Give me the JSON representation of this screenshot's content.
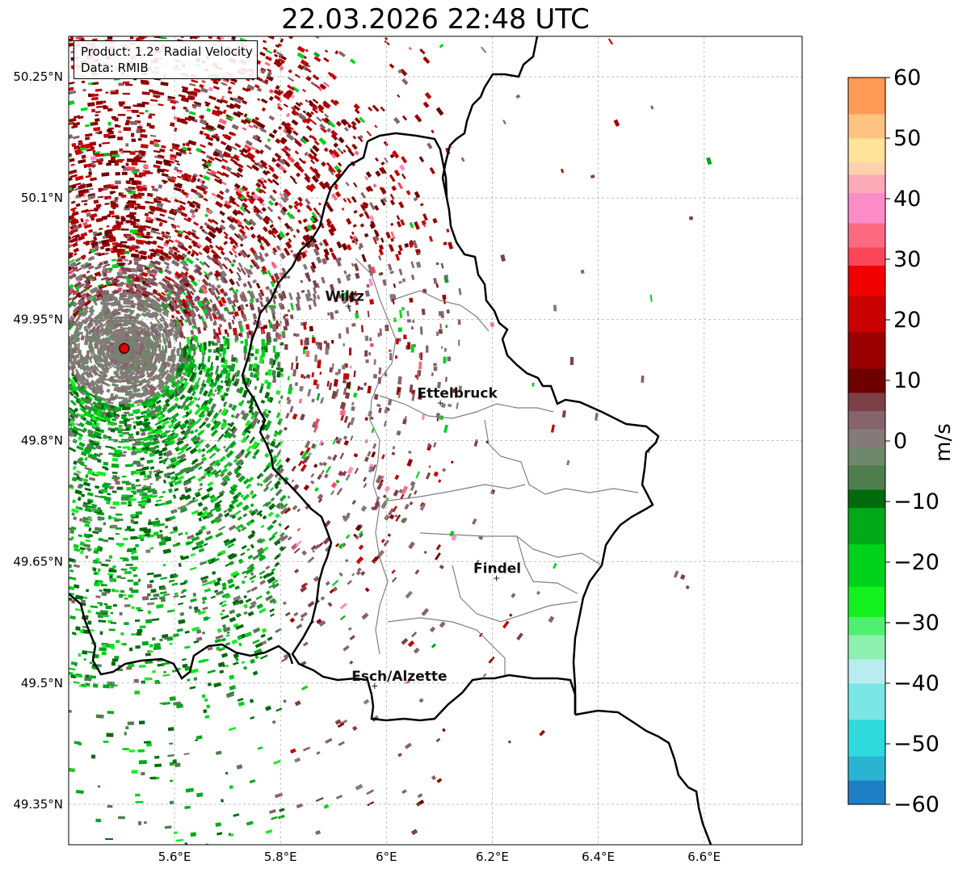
{
  "title": "22.03.2026 22:48 UTC",
  "info": {
    "product": "Product: 1.2° Radial Velocity",
    "data_source": "Data: RMIB"
  },
  "map": {
    "lon_range": [
      5.4,
      6.785
    ],
    "lat_range": [
      49.3,
      50.3
    ],
    "lon_ticks": [
      {
        "value": 5.6,
        "label": "5.6°E"
      },
      {
        "value": 5.8,
        "label": "5.8°E"
      },
      {
        "value": 6.0,
        "label": "6°E"
      },
      {
        "value": 6.2,
        "label": "6.2°E"
      },
      {
        "value": 6.4,
        "label": "6.4°E"
      },
      {
        "value": 6.6,
        "label": "6.6°E"
      }
    ],
    "lat_ticks": [
      {
        "value": 50.25,
        "label": "50.25°N"
      },
      {
        "value": 50.1,
        "label": "50.1°N"
      },
      {
        "value": 49.95,
        "label": "49.95°N"
      },
      {
        "value": 49.8,
        "label": "49.8°N"
      },
      {
        "value": 49.65,
        "label": "49.65°N"
      },
      {
        "value": 49.5,
        "label": "49.5°N"
      },
      {
        "value": 49.35,
        "label": "49.35°N"
      }
    ],
    "cities": [
      {
        "name": "Wiltz",
        "lon": 5.93,
        "lat": 49.967
      },
      {
        "name": "Ettelbruck",
        "lon": 6.104,
        "lat": 49.847
      },
      {
        "name": "Findel",
        "lon": 6.21,
        "lat": 49.63
      },
      {
        "name": "Esch/Alzette",
        "lon": 5.98,
        "lat": 49.497
      }
    ],
    "radar_site": {
      "lon": 5.505,
      "lat": 49.914
    }
  },
  "colorbar": {
    "label": "m/s",
    "min": -60,
    "max": 60,
    "ticks": [
      {
        "value": 60,
        "label": "60"
      },
      {
        "value": 50,
        "label": "50"
      },
      {
        "value": 40,
        "label": "40"
      },
      {
        "value": 30,
        "label": "30"
      },
      {
        "value": 20,
        "label": "20"
      },
      {
        "value": 10,
        "label": "10"
      },
      {
        "value": 0,
        "label": "0"
      },
      {
        "value": -10,
        "label": "−10"
      },
      {
        "value": -20,
        "label": "−20"
      },
      {
        "value": -30,
        "label": "−30"
      },
      {
        "value": -40,
        "label": "−40"
      },
      {
        "value": -50,
        "label": "−50"
      },
      {
        "value": -60,
        "label": "−60"
      }
    ],
    "bands": [
      {
        "from": -60,
        "to": -56,
        "color": "#1f7fc4"
      },
      {
        "from": -56,
        "to": -52,
        "color": "#2ab4d2"
      },
      {
        "from": -52,
        "to": -46,
        "color": "#2edadc"
      },
      {
        "from": -46,
        "to": -40,
        "color": "#7ae6e6"
      },
      {
        "from": -40,
        "to": -36,
        "color": "#b8ecee"
      },
      {
        "from": -36,
        "to": -32,
        "color": "#8ef0b0"
      },
      {
        "from": -32,
        "to": -29,
        "color": "#4ff070"
      },
      {
        "from": -29,
        "to": -24,
        "color": "#12f020"
      },
      {
        "from": -24,
        "to": -17,
        "color": "#00d21c"
      },
      {
        "from": -17,
        "to": -11,
        "color": "#00a81a"
      },
      {
        "from": -11,
        "to": -8,
        "color": "#006a0c"
      },
      {
        "from": -8,
        "to": -4,
        "color": "#4e7e4e"
      },
      {
        "from": -4,
        "to": -1,
        "color": "#6f876a"
      },
      {
        "from": -1,
        "to": 2,
        "color": "#857a7a"
      },
      {
        "from": 2,
        "to": 5,
        "color": "#86646c"
      },
      {
        "from": 5,
        "to": 8,
        "color": "#7e4048"
      },
      {
        "from": 8,
        "to": 12,
        "color": "#6e0000"
      },
      {
        "from": 12,
        "to": 18,
        "color": "#9a0000"
      },
      {
        "from": 18,
        "to": 24,
        "color": "#c80000"
      },
      {
        "from": 24,
        "to": 29,
        "color": "#f00000"
      },
      {
        "from": 29,
        "to": 32,
        "color": "#fa4658"
      },
      {
        "from": 32,
        "to": 36,
        "color": "#fb6a80"
      },
      {
        "from": 36,
        "to": 41,
        "color": "#fc8cc8"
      },
      {
        "from": 41,
        "to": 44,
        "color": "#fcaab8"
      },
      {
        "from": 44,
        "to": 46,
        "color": "#fdd0b0"
      },
      {
        "from": 46,
        "to": 50,
        "color": "#fee39a"
      },
      {
        "from": 50,
        "to": 54,
        "color": "#fec281"
      },
      {
        "from": 54,
        "to": 60,
        "color": "#fe9a56"
      }
    ]
  },
  "palette": {
    "grid": "#b3b3b3",
    "border": "#000000",
    "admin_border": "#808080",
    "radar_marker": "#e00000"
  }
}
